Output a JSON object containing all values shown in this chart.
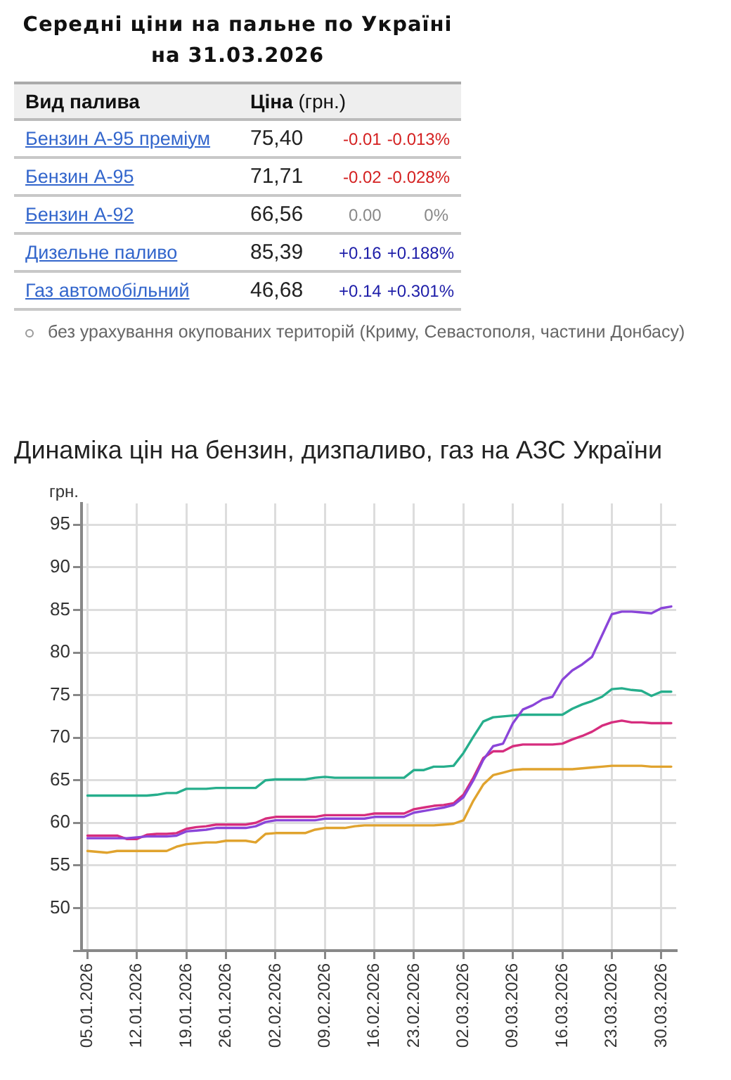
{
  "chart_data": [
    {
      "type": "other",
      "title": "Середні ціни на пальне по Україні на 31.03.2026",
      "xlabel": "Вид палива",
      "ylabel": "Ціна (грн.)",
      "categories": [
        "Бензин А-95 преміум",
        "Бензин А-95",
        "Бензин А-92",
        "Дизельне паливо",
        "Газ автомобільний"
      ],
      "series": [
        {
          "color": "#222222",
          "values": [
            75.4,
            71.71,
            66.56,
            85.39,
            46.68
          ],
          "value_labels": [
            "75,40",
            "71,71",
            "66,56",
            "85,39",
            "46,68"
          ]
        },
        {
          "colors": [
            "#d42020",
            "#d42020",
            "#888888",
            "#1c1ca8",
            "#1c1ca8"
          ],
          "values": [
            -0.01,
            -0.02,
            0,
            0.16,
            0.14
          ],
          "value_labels": [
            "-0.01",
            "-0.02",
            "0.00",
            "+0.16",
            "+0.14"
          ]
        },
        {
          "colors": [
            "#d42020",
            "#d42020",
            "#888888",
            "#1c1ca8",
            "#1c1ca8"
          ],
          "values": [
            -0.013,
            -0.028,
            0,
            0.188,
            0.301
          ],
          "value_labels": [
            "-0.013%",
            "-0.028%",
            "0%",
            "+0.188%",
            "+0.301%"
          ]
        }
      ],
      "annotations": [
        "без урахування окупованих територій (Криму, Севастополя, частини Донбасу)"
      ]
    },
    {
      "type": "line",
      "title": "Динаміка цін на бензин, дизпаливо, газ на АЗС України",
      "ylabel": "грн.",
      "categories": [
        "05.01.2026",
        null,
        null,
        null,
        null,
        "12.01.2026",
        null,
        null,
        null,
        null,
        "19.01.2026",
        null,
        null,
        null,
        "26.01.2026",
        null,
        null,
        null,
        null,
        "02.02.2026",
        null,
        null,
        null,
        null,
        "09.02.2026",
        null,
        null,
        null,
        null,
        "16.02.2026",
        null,
        null,
        null,
        "23.02.2026",
        null,
        null,
        null,
        null,
        "02.03.2026",
        null,
        null,
        null,
        null,
        "09.03.2026",
        null,
        null,
        null,
        null,
        "16.03.2026",
        null,
        null,
        null,
        null,
        "23.03.2026",
        null,
        null,
        null,
        null,
        "30.03.2026",
        null
      ],
      "series": [
        {
          "color": "#8a45d9",
          "values": [
            58.2,
            58.2,
            58.2,
            58.2,
            58.2,
            58.3,
            58.4,
            58.4,
            58.4,
            58.5,
            59.0,
            59.1,
            59.2,
            59.4,
            59.4,
            59.4,
            59.4,
            59.6,
            60.1,
            60.3,
            60.3,
            60.3,
            60.3,
            60.3,
            60.5,
            60.5,
            60.5,
            60.5,
            60.5,
            60.7,
            60.7,
            60.7,
            60.7,
            61.2,
            61.4,
            61.6,
            61.8,
            62.1,
            63.0,
            65.0,
            67.4,
            69.0,
            69.3,
            71.7,
            73.3,
            73.8,
            74.5,
            74.8,
            76.8,
            77.9,
            78.6,
            79.5,
            82.0,
            84.5,
            84.8,
            84.8,
            84.7,
            84.6,
            85.2,
            85.4
          ]
        },
        {
          "color": "#26ae8c",
          "values": [
            63.2,
            63.2,
            63.2,
            63.2,
            63.2,
            63.2,
            63.2,
            63.3,
            63.5,
            63.5,
            64.0,
            64.0,
            64.0,
            64.1,
            64.1,
            64.1,
            64.1,
            64.1,
            65.0,
            65.1,
            65.1,
            65.1,
            65.1,
            65.3,
            65.4,
            65.3,
            65.3,
            65.3,
            65.3,
            65.3,
            65.3,
            65.3,
            65.3,
            66.2,
            66.2,
            66.6,
            66.6,
            66.7,
            68.2,
            70.1,
            71.9,
            72.4,
            72.5,
            72.6,
            72.7,
            72.7,
            72.7,
            72.7,
            72.7,
            73.4,
            73.9,
            74.3,
            74.8,
            75.7,
            75.8,
            75.6,
            75.5,
            74.9,
            75.4,
            75.4
          ]
        },
        {
          "color": "#d62d7e",
          "values": [
            58.5,
            58.5,
            58.5,
            58.5,
            58.1,
            58.1,
            58.6,
            58.7,
            58.7,
            58.8,
            59.3,
            59.5,
            59.6,
            59.8,
            59.8,
            59.8,
            59.8,
            60.0,
            60.5,
            60.7,
            60.7,
            60.7,
            60.7,
            60.7,
            60.9,
            60.9,
            60.9,
            60.9,
            60.9,
            61.1,
            61.1,
            61.1,
            61.1,
            61.6,
            61.8,
            62.0,
            62.1,
            62.3,
            63.3,
            65.3,
            67.6,
            68.4,
            68.4,
            69.0,
            69.2,
            69.2,
            69.2,
            69.2,
            69.3,
            69.8,
            70.2,
            70.7,
            71.4,
            71.8,
            72.0,
            71.8,
            71.8,
            71.7,
            71.7,
            71.7
          ]
        },
        {
          "color": "#e0a32e",
          "values": [
            56.7,
            56.6,
            56.5,
            56.7,
            56.7,
            56.7,
            56.7,
            56.7,
            56.7,
            57.2,
            57.5,
            57.6,
            57.7,
            57.7,
            57.9,
            57.9,
            57.9,
            57.7,
            58.7,
            58.8,
            58.8,
            58.8,
            58.8,
            59.2,
            59.4,
            59.4,
            59.4,
            59.6,
            59.7,
            59.7,
            59.7,
            59.7,
            59.7,
            59.7,
            59.7,
            59.7,
            59.8,
            59.9,
            60.3,
            62.6,
            64.5,
            65.6,
            65.9,
            66.2,
            66.3,
            66.3,
            66.3,
            66.3,
            66.3,
            66.3,
            66.4,
            66.5,
            66.6,
            66.7,
            66.7,
            66.7,
            66.7,
            66.6,
            66.6,
            66.6
          ]
        }
      ],
      "ylim": [
        45,
        97.5
      ],
      "yticks": [
        {
          "value": 45,
          "label": null
        },
        50,
        55,
        60,
        65,
        70,
        75,
        80,
        85,
        90,
        95
      ],
      "grid": true,
      "marker": "none",
      "line_style": "solid"
    }
  ]
}
